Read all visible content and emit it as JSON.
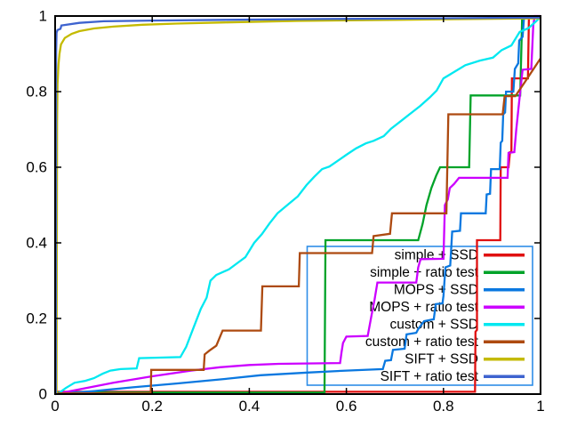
{
  "chart_data": {
    "type": "line",
    "title": "",
    "xlabel": "",
    "ylabel": "",
    "xlim": [
      0,
      1
    ],
    "ylim": [
      0,
      1
    ],
    "grid": false,
    "background": "#ffffff",
    "frame_color": "#000000",
    "tick_style": "inward-all-sides",
    "x_ticks": {
      "values": [
        0,
        0.2,
        0.4,
        0.6,
        0.8,
        1
      ],
      "labels": [
        "0",
        "0.2",
        "0.4",
        "0.6",
        "0.8",
        "1"
      ]
    },
    "y_ticks": {
      "values": [
        0,
        0.2,
        0.4,
        0.6,
        0.8,
        1
      ],
      "labels": [
        "0",
        "0.2",
        "0.4",
        "0.6",
        "0.8",
        "1"
      ]
    },
    "legend": {
      "position": "bottom-right",
      "border_color": "#2e8ee8",
      "background": "transparent",
      "entries": [
        {
          "label": "simple + SSD",
          "color": "#e01010"
        },
        {
          "label": "simple + ratio test",
          "color": "#00a329"
        },
        {
          "label": "MOPS + SSD",
          "color": "#0a78e0"
        },
        {
          "label": "MOPS + ratio test",
          "color": "#cc00ff"
        },
        {
          "label": "custom + SSD",
          "color": "#00e8f0"
        },
        {
          "label": "custom + ratio test",
          "color": "#ad4a10"
        },
        {
          "label": "SIFT + SSD",
          "color": "#c4ba00"
        },
        {
          "label": "SIFT + ratio test",
          "color": "#3e63cf"
        }
      ]
    },
    "series": [
      {
        "name": "simple + SSD",
        "color": "#e01010",
        "points": [
          [
            0,
            0.006
          ],
          [
            0.865,
            0.006
          ],
          [
            0.866,
            0.165
          ],
          [
            0.869,
            0.17
          ],
          [
            0.869,
            0.407
          ],
          [
            0.917,
            0.407
          ],
          [
            0.918,
            0.6
          ],
          [
            0.934,
            0.6
          ],
          [
            0.937,
            0.64
          ],
          [
            0.94,
            0.64
          ],
          [
            0.941,
            0.835
          ],
          [
            0.974,
            0.835
          ],
          [
            0.976,
            0.995
          ],
          [
            1,
            0.997
          ]
        ]
      },
      {
        "name": "simple + ratio test",
        "color": "#00a329",
        "points": [
          [
            0,
            0.004
          ],
          [
            0.555,
            0.004
          ],
          [
            0.557,
            0.407
          ],
          [
            0.748,
            0.407
          ],
          [
            0.757,
            0.45
          ],
          [
            0.765,
            0.5
          ],
          [
            0.775,
            0.545
          ],
          [
            0.785,
            0.578
          ],
          [
            0.793,
            0.6
          ],
          [
            0.853,
            0.6
          ],
          [
            0.856,
            0.79
          ],
          [
            0.958,
            0.79
          ],
          [
            0.962,
            0.995
          ],
          [
            1,
            0.997
          ]
        ]
      },
      {
        "name": "MOPS + SSD",
        "color": "#0a78e0",
        "points": [
          [
            0,
            0
          ],
          [
            0.08,
            0.008
          ],
          [
            0.16,
            0.018
          ],
          [
            0.25,
            0.028
          ],
          [
            0.35,
            0.04
          ],
          [
            0.423,
            0.05
          ],
          [
            0.52,
            0.057
          ],
          [
            0.6,
            0.062
          ],
          [
            0.675,
            0.066
          ],
          [
            0.68,
            0.088
          ],
          [
            0.692,
            0.09
          ],
          [
            0.696,
            0.117
          ],
          [
            0.72,
            0.12
          ],
          [
            0.724,
            0.158
          ],
          [
            0.744,
            0.162
          ],
          [
            0.748,
            0.172
          ],
          [
            0.76,
            0.193
          ],
          [
            0.78,
            0.198
          ],
          [
            0.784,
            0.238
          ],
          [
            0.798,
            0.24
          ],
          [
            0.8,
            0.26
          ],
          [
            0.804,
            0.335
          ],
          [
            0.814,
            0.34
          ],
          [
            0.818,
            0.43
          ],
          [
            0.834,
            0.432
          ],
          [
            0.836,
            0.478
          ],
          [
            0.887,
            0.478
          ],
          [
            0.889,
            0.528
          ],
          [
            0.896,
            0.53
          ],
          [
            0.898,
            0.595
          ],
          [
            0.916,
            0.595
          ],
          [
            0.918,
            0.665
          ],
          [
            0.921,
            0.67
          ],
          [
            0.923,
            0.74
          ],
          [
            0.927,
            0.745
          ],
          [
            0.929,
            0.8
          ],
          [
            0.944,
            0.8
          ],
          [
            0.947,
            0.86
          ],
          [
            0.954,
            0.875
          ],
          [
            0.956,
            0.935
          ],
          [
            0.963,
            0.945
          ],
          [
            0.966,
            0.995
          ],
          [
            1,
            0.997
          ]
        ]
      },
      {
        "name": "MOPS + ratio test",
        "color": "#cc00ff",
        "points": [
          [
            0,
            0
          ],
          [
            0.06,
            0.015
          ],
          [
            0.12,
            0.03
          ],
          [
            0.2,
            0.047
          ],
          [
            0.28,
            0.062
          ],
          [
            0.34,
            0.071
          ],
          [
            0.4,
            0.077
          ],
          [
            0.46,
            0.08
          ],
          [
            0.587,
            0.082
          ],
          [
            0.59,
            0.11
          ],
          [
            0.593,
            0.135
          ],
          [
            0.6,
            0.152
          ],
          [
            0.644,
            0.154
          ],
          [
            0.652,
            0.21
          ],
          [
            0.658,
            0.25
          ],
          [
            0.664,
            0.295
          ],
          [
            0.744,
            0.295
          ],
          [
            0.748,
            0.335
          ],
          [
            0.753,
            0.357
          ],
          [
            0.8,
            0.358
          ],
          [
            0.803,
            0.5
          ],
          [
            0.809,
            0.515
          ],
          [
            0.813,
            0.545
          ],
          [
            0.822,
            0.556
          ],
          [
            0.832,
            0.572
          ],
          [
            0.932,
            0.572
          ],
          [
            0.934,
            0.638
          ],
          [
            0.946,
            0.64
          ],
          [
            0.95,
            0.7
          ],
          [
            0.954,
            0.75
          ],
          [
            0.959,
            0.81
          ],
          [
            0.963,
            0.858
          ],
          [
            0.981,
            0.86
          ],
          [
            0.985,
            0.975
          ],
          [
            0.988,
            1
          ],
          [
            1,
            1
          ]
        ]
      },
      {
        "name": "custom + SSD",
        "color": "#00e8f0",
        "points": [
          [
            0,
            0
          ],
          [
            0.01,
            0.005
          ],
          [
            0.022,
            0.016
          ],
          [
            0.04,
            0.03
          ],
          [
            0.062,
            0.035
          ],
          [
            0.08,
            0.042
          ],
          [
            0.098,
            0.054
          ],
          [
            0.114,
            0.062
          ],
          [
            0.135,
            0.066
          ],
          [
            0.168,
            0.068
          ],
          [
            0.173,
            0.095
          ],
          [
            0.258,
            0.098
          ],
          [
            0.27,
            0.125
          ],
          [
            0.285,
            0.175
          ],
          [
            0.3,
            0.225
          ],
          [
            0.312,
            0.255
          ],
          [
            0.32,
            0.3
          ],
          [
            0.332,
            0.315
          ],
          [
            0.358,
            0.33
          ],
          [
            0.376,
            0.347
          ],
          [
            0.392,
            0.362
          ],
          [
            0.41,
            0.4
          ],
          [
            0.426,
            0.423
          ],
          [
            0.442,
            0.452
          ],
          [
            0.458,
            0.478
          ],
          [
            0.48,
            0.502
          ],
          [
            0.5,
            0.523
          ],
          [
            0.518,
            0.553
          ],
          [
            0.534,
            0.575
          ],
          [
            0.55,
            0.595
          ],
          [
            0.565,
            0.602
          ],
          [
            0.582,
            0.617
          ],
          [
            0.6,
            0.633
          ],
          [
            0.62,
            0.65
          ],
          [
            0.64,
            0.663
          ],
          [
            0.656,
            0.67
          ],
          [
            0.677,
            0.682
          ],
          [
            0.692,
            0.702
          ],
          [
            0.712,
            0.722
          ],
          [
            0.732,
            0.742
          ],
          [
            0.752,
            0.762
          ],
          [
            0.772,
            0.785
          ],
          [
            0.786,
            0.803
          ],
          [
            0.8,
            0.835
          ],
          [
            0.822,
            0.852
          ],
          [
            0.845,
            0.87
          ],
          [
            0.875,
            0.882
          ],
          [
            0.902,
            0.89
          ],
          [
            0.92,
            0.91
          ],
          [
            0.94,
            0.922
          ],
          [
            0.957,
            0.958
          ],
          [
            0.975,
            0.968
          ],
          [
            0.99,
            0.985
          ],
          [
            1,
            0.998
          ]
        ]
      },
      {
        "name": "custom + ratio test",
        "color": "#ad4a10",
        "points": [
          [
            0,
            0.002
          ],
          [
            0.197,
            0.002
          ],
          [
            0.198,
            0.064
          ],
          [
            0.306,
            0.064
          ],
          [
            0.308,
            0.105
          ],
          [
            0.318,
            0.115
          ],
          [
            0.332,
            0.128
          ],
          [
            0.345,
            0.168
          ],
          [
            0.424,
            0.168
          ],
          [
            0.427,
            0.285
          ],
          [
            0.502,
            0.285
          ],
          [
            0.504,
            0.373
          ],
          [
            0.653,
            0.373
          ],
          [
            0.656,
            0.418
          ],
          [
            0.69,
            0.424
          ],
          [
            0.694,
            0.478
          ],
          [
            0.806,
            0.478
          ],
          [
            0.81,
            0.74
          ],
          [
            0.922,
            0.74
          ],
          [
            0.926,
            0.788
          ],
          [
            0.948,
            0.788
          ],
          [
            0.968,
            0.826
          ],
          [
            1,
            0.888
          ]
        ]
      },
      {
        "name": "SIFT + SSD",
        "color": "#c4ba00",
        "points": [
          [
            0.003,
            0
          ],
          [
            0.004,
            0.72
          ],
          [
            0.005,
            0.82
          ],
          [
            0.007,
            0.872
          ],
          [
            0.009,
            0.9
          ],
          [
            0.012,
            0.925
          ],
          [
            0.02,
            0.942
          ],
          [
            0.034,
            0.953
          ],
          [
            0.05,
            0.96
          ],
          [
            0.08,
            0.967
          ],
          [
            0.12,
            0.972
          ],
          [
            0.18,
            0.977
          ],
          [
            0.25,
            0.98
          ],
          [
            0.35,
            0.983
          ],
          [
            0.5,
            0.987
          ],
          [
            0.7,
            0.99
          ],
          [
            1,
            0.994
          ]
        ]
      },
      {
        "name": "SIFT + ratio test",
        "color": "#3e63cf",
        "points": [
          [
            0.0015,
            0
          ],
          [
            0.002,
            0.9
          ],
          [
            0.003,
            0.956
          ],
          [
            0.005,
            0.963
          ],
          [
            0.011,
            0.966
          ],
          [
            0.013,
            0.975
          ],
          [
            0.05,
            0.982
          ],
          [
            0.1,
            0.986
          ],
          [
            0.2,
            0.988
          ],
          [
            0.35,
            0.99
          ],
          [
            0.55,
            0.992
          ],
          [
            0.8,
            0.994
          ],
          [
            1,
            0.996
          ]
        ]
      }
    ]
  }
}
